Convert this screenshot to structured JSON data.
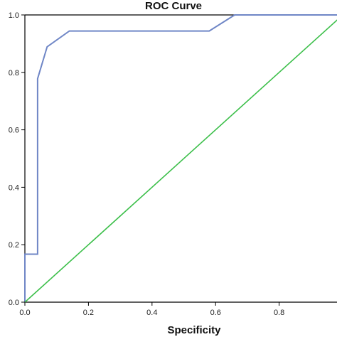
{
  "chart_data": {
    "type": "line",
    "title": "ROC Curve",
    "xlabel": "Specificity",
    "ylabel": "",
    "xlim": [
      0,
      1
    ],
    "ylim": [
      0,
      1
    ],
    "x_ticks": [
      "0.0",
      "0.2",
      "0.4",
      "0.6",
      "0.8"
    ],
    "y_ticks": [
      "0.0",
      "0.2",
      "0.4",
      "0.6",
      "0.8",
      "1.0"
    ],
    "grid": false,
    "legend": "none",
    "series": [
      {
        "color": "#6f86c6",
        "x": [
          0.0,
          0.0,
          0.04,
          0.04,
          0.07,
          0.14,
          0.58,
          0.66,
          1.0
        ],
        "y": [
          0.0,
          0.167,
          0.167,
          0.778,
          0.889,
          0.944,
          0.944,
          1.0,
          1.0
        ]
      },
      {
        "color": "#3cbf4a",
        "x": [
          0.0,
          1.0
        ],
        "y": [
          0.0,
          1.0
        ]
      }
    ],
    "axis_color": "#000000"
  }
}
